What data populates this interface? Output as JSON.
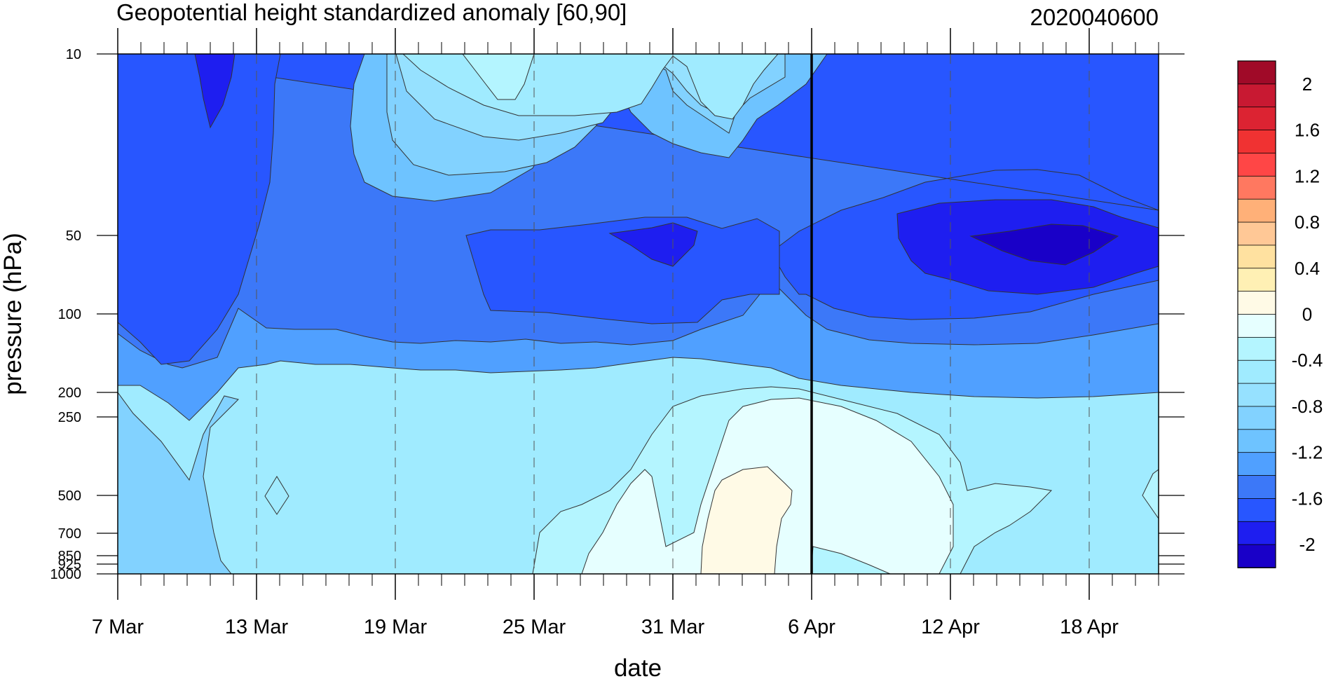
{
  "chart_data": {
    "type": "heatmap",
    "title": "Geopotential height standardized anomaly [60,90]",
    "subtitle": "2020040600",
    "xlabel": "date",
    "ylabel": "pressure (hPa)",
    "x_ticks": [
      "7 Mar",
      "13 Mar",
      "19 Mar",
      "25 Mar",
      "31 Mar",
      "6 Apr",
      "12 Apr",
      "18 Apr"
    ],
    "y_ticks": [
      10,
      50,
      100,
      200,
      250,
      500,
      700,
      850,
      925,
      1000
    ],
    "y_tick_labels": [
      "10",
      "50",
      "100",
      "200",
      "250",
      "500",
      "700",
      "850",
      "925",
      "1000"
    ],
    "y_scale": "pressure, inverted",
    "x_range": [
      "2020-03-07",
      "2020-04-21"
    ],
    "vertical_marker": "2020-04-06",
    "colorbar": {
      "levels": [
        -2.2,
        -2,
        -1.8,
        -1.6,
        -1.4,
        -1.2,
        -1,
        -0.8,
        -0.6,
        -0.4,
        -0.2,
        0,
        0.2,
        0.4,
        0.6,
        0.8,
        1,
        1.2,
        1.4,
        1.6,
        1.8,
        2,
        2.2
      ],
      "labels": [
        "2",
        "1.6",
        "1.2",
        "0.8",
        "0.4",
        "0",
        "-0.4",
        "-0.8",
        "-1.2",
        "-1.6",
        "-2"
      ],
      "colors": [
        "#1900c8",
        "#1e1ef0",
        "#2856ff",
        "#3c78f8",
        "#50a0ff",
        "#6ec3ff",
        "#82d2ff",
        "#96e1ff",
        "#a0ebff",
        "#b4f5ff",
        "#e6ffff",
        "#fffae6",
        "#fff0b4",
        "#ffe1a0",
        "#ffc896",
        "#ffb078",
        "#ff7860",
        "#ff4646",
        "#f03232",
        "#dc2332",
        "#c81932",
        "#a00a28"
      ]
    },
    "regions": [
      {
        "level": -0.6,
        "desc": "lower troposphere background"
      },
      {
        "level": -2.0,
        "date": "2020-03-10",
        "pressure": 10
      },
      {
        "level": -1.8,
        "date": "2020-04-16",
        "pressure": 50
      },
      {
        "level": -1.6,
        "date": "2020-03-31",
        "pressure": 50
      },
      {
        "level": -0.2,
        "date": "2020-03-24",
        "pressure": 10
      },
      {
        "level": 0.2,
        "date": "2020-04-03",
        "pressure": 700
      },
      {
        "level": 0.0,
        "date": "2020-04-06",
        "pressure": 400
      }
    ]
  }
}
